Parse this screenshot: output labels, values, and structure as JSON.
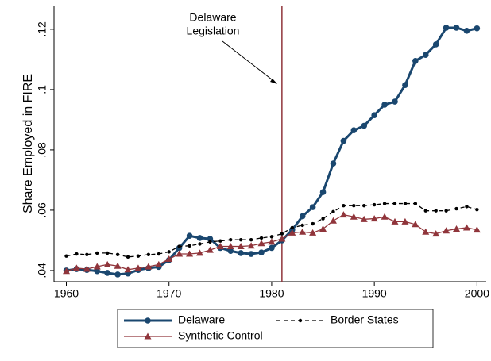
{
  "chart_data": {
    "type": "line",
    "y_label": "Share Employed in FIRE",
    "x": [
      1960,
      1961,
      1962,
      1963,
      1964,
      1965,
      1966,
      1967,
      1968,
      1969,
      1970,
      1971,
      1972,
      1973,
      1974,
      1975,
      1976,
      1977,
      1978,
      1979,
      1980,
      1981,
      1982,
      1983,
      1984,
      1985,
      1986,
      1987,
      1988,
      1989,
      1990,
      1991,
      1992,
      1993,
      1994,
      1995,
      1996,
      1997,
      1998,
      1999,
      2000
    ],
    "series": [
      {
        "name": "Delaware",
        "color": "#1a476f",
        "marker": "circle",
        "dash": "solid",
        "values": [
          0.04,
          0.0405,
          0.0402,
          0.0398,
          0.0392,
          0.0387,
          0.039,
          0.0402,
          0.0408,
          0.0412,
          0.0435,
          0.0475,
          0.0515,
          0.0508,
          0.0505,
          0.0475,
          0.0465,
          0.0458,
          0.0455,
          0.046,
          0.0475,
          0.05,
          0.0535,
          0.058,
          0.061,
          0.066,
          0.0755,
          0.083,
          0.0865,
          0.088,
          0.0915,
          0.095,
          0.096,
          0.1015,
          0.1095,
          0.1115,
          0.115,
          0.1205,
          0.1205,
          0.1195,
          0.1203
        ]
      },
      {
        "name": "Border States",
        "color": "#000000",
        "marker": "dot",
        "dash": "dashed",
        "values": [
          0.0448,
          0.0455,
          0.0453,
          0.0458,
          0.0458,
          0.0453,
          0.0445,
          0.0448,
          0.0453,
          0.0455,
          0.0462,
          0.048,
          0.0482,
          0.0488,
          0.0495,
          0.0498,
          0.0502,
          0.0502,
          0.0502,
          0.0508,
          0.0512,
          0.0522,
          0.0542,
          0.055,
          0.0555,
          0.0572,
          0.0595,
          0.0615,
          0.0615,
          0.0615,
          0.0618,
          0.0622,
          0.0622,
          0.0622,
          0.0622,
          0.0598,
          0.0598,
          0.0598,
          0.0605,
          0.0612,
          0.0602
        ]
      },
      {
        "name": "Synthetic Control",
        "color": "#90353b",
        "marker": "triangle",
        "dash": "solid",
        "values": [
          0.0398,
          0.0408,
          0.0405,
          0.0413,
          0.042,
          0.0415,
          0.0403,
          0.0408,
          0.0413,
          0.042,
          0.0438,
          0.0455,
          0.0455,
          0.0458,
          0.0468,
          0.048,
          0.048,
          0.048,
          0.0482,
          0.049,
          0.0495,
          0.0505,
          0.0525,
          0.0528,
          0.0525,
          0.0538,
          0.0565,
          0.0585,
          0.0578,
          0.057,
          0.0572,
          0.0578,
          0.0562,
          0.0562,
          0.0553,
          0.0528,
          0.0522,
          0.0532,
          0.0538,
          0.0542,
          0.0535
        ]
      }
    ],
    "xlim": [
      1958.8,
      2000.9
    ],
    "xticks": [
      1960,
      1970,
      1980,
      1990,
      2000
    ],
    "ylim": [
      0.0363,
      0.1276
    ],
    "yticks": [
      {
        "value": 0.04,
        "label": ".04"
      },
      {
        "value": 0.06,
        "label": ".06"
      },
      {
        "value": 0.08,
        "label": ".08"
      },
      {
        "value": 0.1,
        "label": ".1"
      },
      {
        "value": 0.12,
        "label": ".12"
      }
    ],
    "vline": {
      "x": 1981,
      "color": "#90353b"
    },
    "annotation": {
      "lines": [
        "Delaware",
        "Legislation"
      ]
    }
  }
}
